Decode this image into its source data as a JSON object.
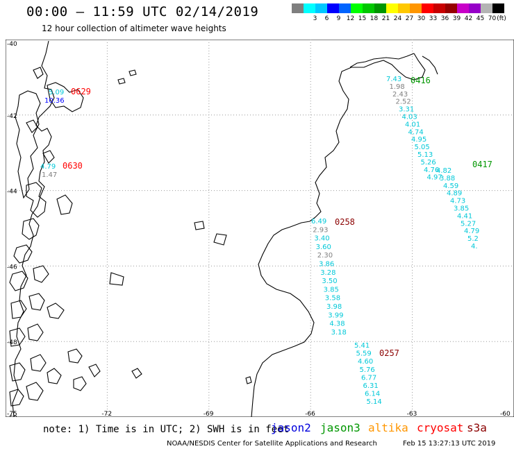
{
  "header": {
    "title": "00:00 – 11:59 UTC 02/14/2019",
    "subtitle": "12 hour collection of altimeter wave heights"
  },
  "legend": {
    "unit": "(ft)",
    "swatches": [
      {
        "color": "#7f7f7f",
        "label": ""
      },
      {
        "color": "#00ffff",
        "label": "3"
      },
      {
        "color": "#00c8ff",
        "label": "6"
      },
      {
        "color": "#0000ff",
        "label": "9"
      },
      {
        "color": "#0064ff",
        "label": "12"
      },
      {
        "color": "#00ff00",
        "label": "15"
      },
      {
        "color": "#00c800",
        "label": "18"
      },
      {
        "color": "#009600",
        "label": "21"
      },
      {
        "color": "#ffff00",
        "label": "24"
      },
      {
        "color": "#ffc800",
        "label": "27"
      },
      {
        "color": "#ff9600",
        "label": "30"
      },
      {
        "color": "#ff0000",
        "label": "33"
      },
      {
        "color": "#c80000",
        "label": "36"
      },
      {
        "color": "#960000",
        "label": "39"
      },
      {
        "color": "#c800c8",
        "label": "42"
      },
      {
        "color": "#9600c8",
        "label": "45"
      },
      {
        "color": "#b4b4b4",
        "label": "70"
      },
      {
        "color": "#000000",
        "label": ""
      }
    ]
  },
  "axes": {
    "lat_labels": [
      "-40",
      "-42",
      "-44",
      "-46",
      "-48",
      "-50"
    ],
    "lon_labels": [
      "-75",
      "-72",
      "-69",
      "-66",
      "-63",
      "-60"
    ]
  },
  "tracks": [
    {
      "time": "0416",
      "time_color": "#009600",
      "values": [
        "7.43",
        "1.98",
        "2.43",
        "2.52",
        "3.31",
        "4.03",
        "4.01",
        "4.74",
        "4.95",
        "5.05",
        "5.13",
        "5.26",
        "4.76",
        "4.97"
      ]
    },
    {
      "time": "0417",
      "time_color": "#009600",
      "values": [
        "4.82",
        "3.88",
        "4.59",
        "4.89",
        "4.73",
        "3.85",
        "4.41",
        "5.27",
        "4.79",
        "5.2",
        "4."
      ]
    },
    {
      "time": "0258",
      "time_color": "#8b0000",
      "values": [
        "6.49",
        "2.93",
        "3.40",
        "3.60",
        "2.30",
        "3.86",
        "3.28",
        "3.50",
        "3.85",
        "3.58",
        "3.98",
        "3.99",
        "4.38",
        "3.18"
      ]
    },
    {
      "time": "0257",
      "time_color": "#8b0000",
      "values": [
        "5.41",
        "5.59",
        "4.60",
        "5.76",
        "6.77",
        "6.31",
        "6.14",
        "5.14"
      ]
    },
    {
      "time": "0629",
      "time_color": "#ff0000",
      "values": [
        "5.09",
        "10.36"
      ]
    },
    {
      "time": "0630",
      "time_color": "#ff0000",
      "values": [
        "4.79",
        "1.47"
      ]
    }
  ],
  "footer": {
    "note": "note: 1) Time is in UTC; 2) SWH is in feet",
    "satellites": [
      {
        "name": "jason2",
        "color": "#0000dd"
      },
      {
        "name": "jason3",
        "color": "#009600"
      },
      {
        "name": "altika",
        "color": "#ff9600"
      },
      {
        "name": "cryosat",
        "color": "#ff0000"
      },
      {
        "name": "s3a",
        "color": "#8b0000"
      }
    ],
    "credit": "NOAA/NESDIS Center for Satellite Applications and Research",
    "timestamp": "Feb 15 13:27:13 UTC 2019"
  }
}
